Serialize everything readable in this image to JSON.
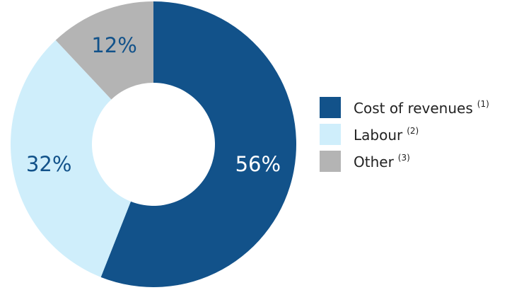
{
  "chart_data": {
    "type": "pie",
    "donut": true,
    "title": "",
    "legend_position": "right",
    "series": [
      {
        "name": "Cost of revenues",
        "note": "(1)",
        "value": 56,
        "label": "56%",
        "color": "#12528a",
        "label_color": "#ffffff"
      },
      {
        "name": "Labour",
        "note": "(2)",
        "value": 32,
        "label": "32%",
        "color": "#cfeefb",
        "label_color": "#12528a"
      },
      {
        "name": "Other",
        "note": "(3)",
        "value": 12,
        "label": "12%",
        "color": "#b4b4b4",
        "label_color": "#12528a"
      }
    ]
  }
}
